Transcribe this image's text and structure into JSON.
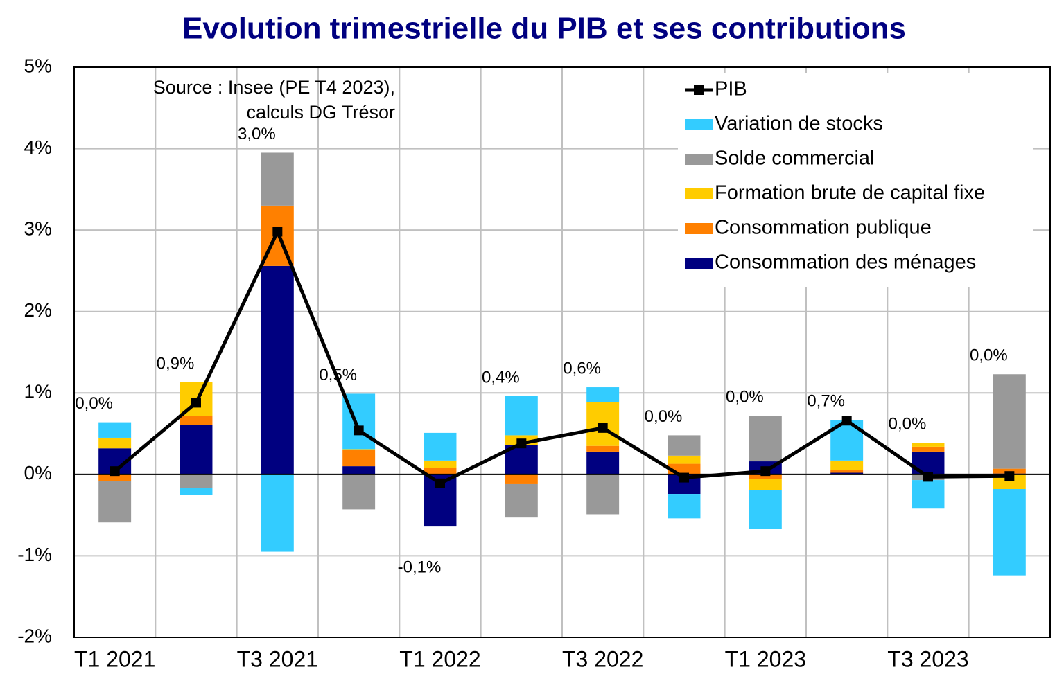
{
  "chart_data": {
    "type": "bar",
    "stacked": true,
    "title": "Evolution trimestrielle du PIB et ses contributions",
    "annotation": [
      "Source : Insee (PE T4 2023),",
      "calculs DG Trésor"
    ],
    "categories": [
      "T1 2021",
      null,
      "T3 2021",
      null,
      "T1 2022",
      null,
      "T3 2022",
      null,
      "T1 2023",
      null,
      "T3 2023",
      null
    ],
    "ylim": [
      -2,
      5
    ],
    "yticks": [
      {
        "value": -2,
        "label": "-2%"
      },
      {
        "value": -1,
        "label": "-1%"
      },
      {
        "value": 0,
        "label": "0%"
      },
      {
        "value": 1,
        "label": "1%"
      },
      {
        "value": 2,
        "label": "2%"
      },
      {
        "value": 3,
        "label": "3%"
      },
      {
        "value": 4,
        "label": "4%"
      },
      {
        "value": 5,
        "label": "5%"
      }
    ],
    "grid": true,
    "legend": "upper right",
    "series": [
      {
        "name": "Consommation des ménages",
        "color": "#000080",
        "values": [
          0.32,
          0.61,
          2.56,
          0.1,
          -0.64,
          0.36,
          0.28,
          -0.24,
          0.16,
          0.02,
          0.28,
          0.01
        ]
      },
      {
        "name": "Consommation publique",
        "color": "#ff8000",
        "values": [
          -0.08,
          0.11,
          0.74,
          0.2,
          0.08,
          -0.12,
          0.07,
          0.13,
          -0.06,
          0.03,
          0.06,
          0.06
        ]
      },
      {
        "name": "Formation brute de capital fixe",
        "color": "#ffcc00",
        "values": [
          0.13,
          0.41,
          0,
          0.01,
          0.09,
          0.12,
          0.54,
          0.1,
          -0.13,
          0.12,
          0.05,
          -0.18
        ]
      },
      {
        "name": "Solde commercial",
        "color": "#999999",
        "values": [
          -0.51,
          -0.17,
          0.65,
          -0.43,
          0,
          -0.41,
          -0.49,
          0.25,
          0.56,
          0,
          -0.07,
          1.16
        ]
      },
      {
        "name": "Variation de stocks",
        "color": "#33ccff",
        "values": [
          0.19,
          -0.08,
          -0.95,
          0.68,
          0.34,
          0.48,
          0.18,
          -0.3,
          -0.48,
          0.5,
          -0.35,
          -1.06
        ]
      },
      {
        "name": "PIB",
        "color": "#000000",
        "type": "line",
        "values": [
          0.04,
          0.88,
          2.98,
          0.54,
          -0.11,
          0.38,
          0.57,
          -0.04,
          0.04,
          0.66,
          -0.03,
          -0.02
        ],
        "value_labels": [
          "0,0%",
          "0,9%",
          "3,0%",
          "0,5%",
          "-0,1%",
          "0,4%",
          "0,6%",
          "0,0%",
          "0,0%",
          "0,7%",
          "0,0%",
          "0,0%"
        ]
      }
    ]
  }
}
